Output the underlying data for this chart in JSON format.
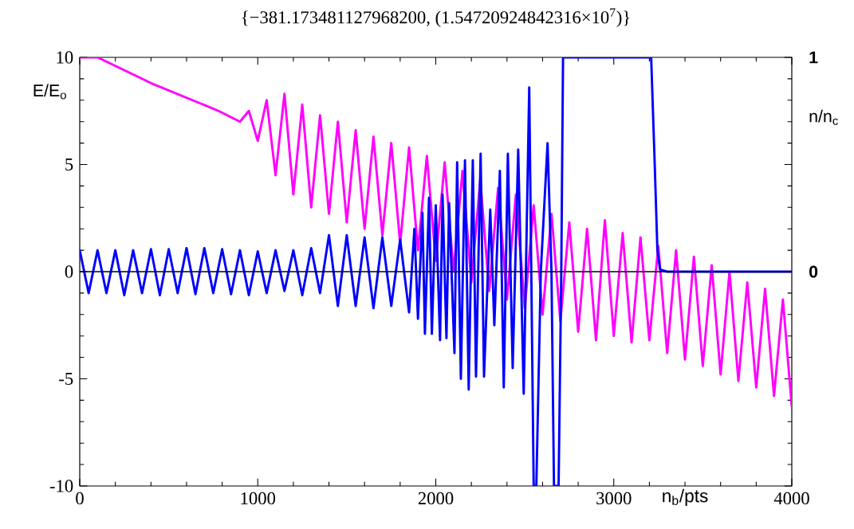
{
  "chart_data": {
    "type": "line",
    "title": "{−381.173481127968200,  (1.54720924842316×10$^{7}$)}",
    "xlabel": "n$_{b}$/pts",
    "ylabel": "E/E$_{o}$",
    "y2label": "n/n$_{c}$",
    "xlim": [
      0,
      4000
    ],
    "ylim": [
      -10,
      10
    ],
    "xticks": [
      0,
      1000,
      2000,
      3000,
      4000
    ],
    "yticks": [
      -10,
      -5,
      0,
      5,
      10
    ],
    "y2lim": [
      -1,
      1
    ],
    "y2ticks": [
      0,
      1
    ],
    "ref_lines": [
      {
        "axis": "y",
        "value": 0,
        "color": "#000000"
      }
    ],
    "series": [
      {
        "color": "#ff00ff",
        "x": [
          0,
          100,
          400,
          780,
          900,
          950,
          1000,
          1050,
          1100,
          1150,
          1200,
          1250,
          1300,
          1350,
          1400,
          1450,
          1500,
          1550,
          1600,
          1650,
          1700,
          1750,
          1800,
          1850,
          1900,
          1950,
          2000,
          2050,
          2100,
          2150,
          2200,
          2250,
          2300,
          2350,
          2400,
          2450,
          2500,
          2550,
          2600,
          2650,
          2700,
          2750,
          2800,
          2850,
          2900,
          2950,
          3000,
          3050,
          3100,
          3150,
          3200,
          3250,
          3300,
          3350,
          3400,
          3450,
          3500,
          3550,
          3600,
          3650,
          3700,
          3750,
          3800,
          3850,
          3900,
          3950,
          4000
        ],
        "values": [
          10,
          10,
          8.8,
          7.5,
          7.0,
          7.5,
          6.1,
          8.0,
          4.5,
          8.3,
          3.6,
          7.8,
          3.0,
          7.3,
          2.7,
          7.0,
          2.3,
          6.6,
          2.0,
          6.3,
          1.7,
          6.0,
          1.3,
          5.8,
          1.0,
          5.4,
          0.5,
          5.1,
          0.0,
          4.7,
          -0.5,
          4.3,
          -0.9,
          3.9,
          -1.3,
          3.6,
          -1.7,
          3.1,
          -2.0,
          2.7,
          -2.3,
          2.3,
          -2.8,
          2.0,
          -3.2,
          2.4,
          -3.0,
          1.8,
          -3.3,
          1.6,
          -3.2,
          1.2,
          -3.8,
          1.0,
          -4.1,
          0.7,
          -4.4,
          0.3,
          -4.8,
          0.0,
          -5.1,
          -0.5,
          -5.4,
          -0.8,
          -5.8,
          -1.3,
          -6.3
        ]
      },
      {
        "color": "#0000ff",
        "x": [
          0,
          50,
          100,
          150,
          200,
          250,
          300,
          350,
          400,
          450,
          500,
          550,
          600,
          650,
          700,
          750,
          800,
          850,
          900,
          950,
          1000,
          1050,
          1100,
          1150,
          1200,
          1250,
          1300,
          1350,
          1400,
          1450,
          1500,
          1550,
          1600,
          1650,
          1700,
          1750,
          1800,
          1850,
          1880,
          1900,
          1925,
          1939,
          1962,
          1978,
          2000,
          2024,
          2038,
          2060,
          2075,
          2105,
          2120,
          2141,
          2164,
          2185,
          2208,
          2226,
          2252,
          2271,
          2306,
          2329,
          2360,
          2382,
          2405,
          2432,
          2463,
          2494,
          2525,
          2550,
          2565,
          2590,
          2628,
          2650,
          2664,
          2690,
          2705,
          2715,
          3210,
          3230,
          3245,
          3260,
          3300,
          3500,
          3700,
          4000
        ],
        "values": [
          1.0,
          -1.0,
          1.0,
          -1.0,
          1.0,
          -1.1,
          1.0,
          -1.0,
          1.05,
          -1.1,
          1.05,
          -1.0,
          1.1,
          -1.05,
          1.1,
          -1.0,
          1.05,
          -1.05,
          1.0,
          -1.1,
          0.95,
          -1.0,
          1.0,
          -0.9,
          1.0,
          -1.1,
          1.1,
          -1.0,
          1.7,
          -1.6,
          1.7,
          -1.6,
          1.6,
          -1.7,
          1.6,
          -1.6,
          1.5,
          -1.9,
          2.0,
          -2.2,
          2.75,
          -2.9,
          3.45,
          -2.9,
          3.1,
          -3.2,
          3.6,
          -3.1,
          3.2,
          -3.8,
          5.1,
          -5.0,
          5.2,
          -5.5,
          5.2,
          -4.9,
          5.5,
          -4.9,
          2.9,
          -2.5,
          4.7,
          -5.4,
          5.5,
          -4.5,
          5.7,
          -5.7,
          8.6,
          -10,
          -10,
          0,
          6.0,
          0,
          -10,
          -10,
          0,
          10,
          10,
          5,
          1,
          0.1,
          0,
          0,
          0,
          0
        ]
      }
    ]
  }
}
